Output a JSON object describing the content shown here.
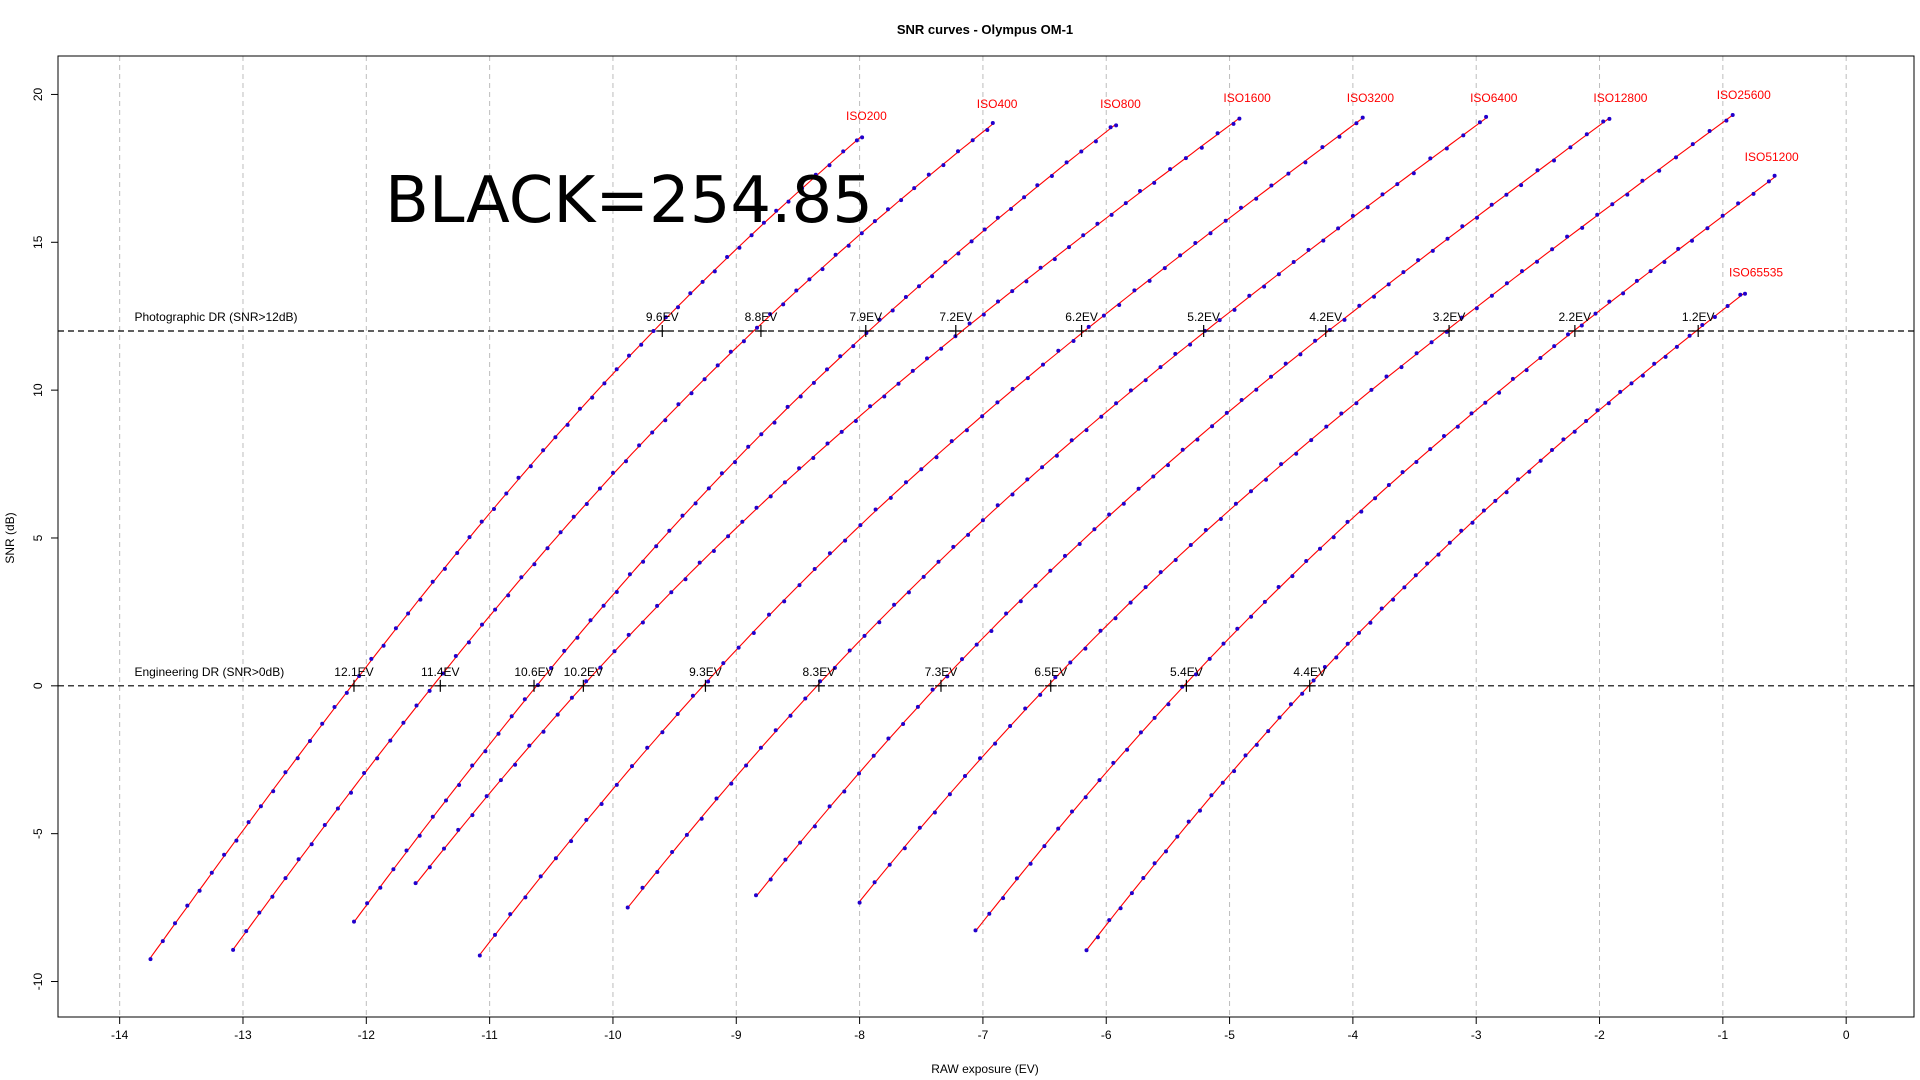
{
  "chart_data": {
    "type": "line",
    "title": "SNR curves - Olympus OM-1",
    "xlabel": "RAW exposure (EV)",
    "ylabel": "SNR (dB)",
    "xlim": [
      -14.5,
      0.55
    ],
    "ylim": [
      -11.2,
      21.3
    ],
    "x_ticks": [
      -14,
      -13,
      -12,
      -11,
      -10,
      -9,
      -8,
      -7,
      -6,
      -5,
      -4,
      -3,
      -2,
      -1,
      0
    ],
    "y_ticks": [
      -10,
      -5,
      0,
      5,
      10,
      15,
      20
    ],
    "grid": "vertical-dashed",
    "annotation": "BLACK=254.85",
    "reference_lines": [
      {
        "y": 12,
        "label": "Photographic DR (SNR>12dB)"
      },
      {
        "y": 0,
        "label": "Engineering DR (SNR>0dB)"
      }
    ],
    "series": [
      {
        "name": "ISO200",
        "x_start": -13.75,
        "y_start": -9.2,
        "x_end": -7.98,
        "y_end": 18.6,
        "photographic_dr": "9.6EV",
        "pdr_x": -9.6,
        "engineering_dr": "12.1EV",
        "edr_x": -12.1
      },
      {
        "name": "ISO400",
        "x_start": -13.08,
        "y_start": -8.9,
        "x_end": -6.92,
        "y_end": 19.0,
        "photographic_dr": "8.8EV",
        "pdr_x": -8.8,
        "engineering_dr": "11.4EV",
        "edr_x": -11.4
      },
      {
        "name": "ISO800",
        "x_start": -12.1,
        "y_start": -8.0,
        "x_end": -5.92,
        "y_end": 19.0,
        "photographic_dr": "7.9EV",
        "pdr_x": -7.95,
        "engineering_dr": "10.6EV",
        "edr_x": -10.64
      },
      {
        "name": "ISO1600",
        "x_start": -11.6,
        "y_start": -6.7,
        "x_end": -4.92,
        "y_end": 19.2,
        "photographic_dr": "7.2EV",
        "pdr_x": -7.22,
        "engineering_dr": "10.2EV",
        "edr_x": -10.24
      },
      {
        "name": "ISO3200",
        "x_start": -11.08,
        "y_start": -9.1,
        "x_end": -3.92,
        "y_end": 19.2,
        "photographic_dr": "6.2EV",
        "pdr_x": -6.2,
        "engineering_dr": "9.3EV",
        "edr_x": -9.25
      },
      {
        "name": "ISO6400",
        "x_start": -9.88,
        "y_start": -7.5,
        "x_end": -2.92,
        "y_end": 19.2,
        "photographic_dr": "5.2EV",
        "pdr_x": -5.21,
        "engineering_dr": "8.3EV",
        "edr_x": -8.33
      },
      {
        "name": "ISO12800",
        "x_start": -8.84,
        "y_start": -7.1,
        "x_end": -1.92,
        "y_end": 19.2,
        "photographic_dr": "4.2EV",
        "pdr_x": -4.22,
        "engineering_dr": "7.3EV",
        "edr_x": -7.34
      },
      {
        "name": "ISO25600",
        "x_start": -8.0,
        "y_start": -7.3,
        "x_end": -0.92,
        "y_end": 19.3,
        "photographic_dr": "3.2EV",
        "pdr_x": -3.22,
        "engineering_dr": "6.5EV",
        "edr_x": -6.45
      },
      {
        "name": "ISO51200",
        "x_start": -7.06,
        "y_start": -8.3,
        "x_end": -0.58,
        "y_end": 17.2,
        "photographic_dr": "2.2EV",
        "pdr_x": -2.2,
        "engineering_dr": "5.4EV",
        "edr_x": -5.35
      },
      {
        "name": "ISO65535",
        "x_start": -6.16,
        "y_start": -8.9,
        "x_end": -0.82,
        "y_end": 13.3,
        "photographic_dr": "1.2EV",
        "pdr_x": -1.2,
        "engineering_dr": "4.4EV",
        "edr_x": -4.35
      }
    ],
    "colors": {
      "curve": "#ff0000",
      "points": "#2200cc",
      "label": "#ff0000",
      "reference": "#000000",
      "grid": "#bdbdbd"
    }
  }
}
